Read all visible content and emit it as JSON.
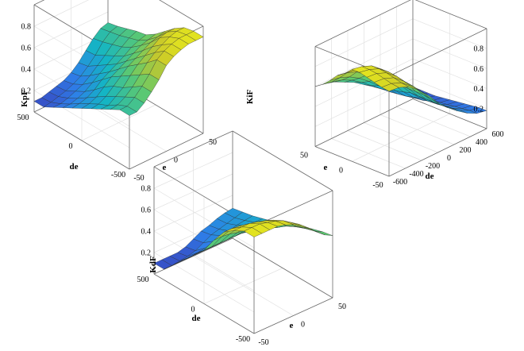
{
  "chart_data": [
    {
      "type": "surface",
      "zlabel": "KpF",
      "xlabel": "e",
      "ylabel": "de",
      "xlim": [
        -50,
        50
      ],
      "ylim": [
        -500,
        500
      ],
      "zlim": [
        0,
        1
      ],
      "x_ticks": [
        "-50",
        "0",
        "50"
      ],
      "y_ticks": [
        "-500",
        "0",
        "500"
      ],
      "z_ticks": [
        "0.2",
        "0.4",
        "0.6",
        "0.8"
      ],
      "grid": true,
      "colormap": [
        "#3e26a8",
        "#2e7fe9",
        "#14b5c4",
        "#60c96d",
        "#c8c82a",
        "#f9fb15"
      ],
      "x": [
        -50,
        -40,
        -30,
        -20,
        -10,
        0,
        10,
        20,
        30,
        40,
        50
      ],
      "y": [
        -500,
        -400,
        -300,
        -200,
        -100,
        0,
        100,
        200,
        300,
        400,
        500
      ],
      "z": [
        [
          0.5,
          0.5,
          0.55,
          0.62,
          0.7,
          0.8,
          0.85,
          0.88,
          0.9,
          0.9,
          0.9
        ],
        [
          0.5,
          0.5,
          0.55,
          0.62,
          0.7,
          0.8,
          0.85,
          0.88,
          0.9,
          0.9,
          0.9
        ],
        [
          0.45,
          0.46,
          0.5,
          0.56,
          0.64,
          0.72,
          0.78,
          0.82,
          0.86,
          0.88,
          0.88
        ],
        [
          0.4,
          0.4,
          0.45,
          0.5,
          0.58,
          0.65,
          0.7,
          0.75,
          0.8,
          0.82,
          0.82
        ],
        [
          0.35,
          0.36,
          0.4,
          0.46,
          0.52,
          0.58,
          0.62,
          0.66,
          0.7,
          0.72,
          0.74
        ],
        [
          0.3,
          0.31,
          0.34,
          0.4,
          0.46,
          0.5,
          0.54,
          0.58,
          0.62,
          0.64,
          0.66
        ],
        [
          0.25,
          0.26,
          0.28,
          0.32,
          0.38,
          0.42,
          0.46,
          0.5,
          0.55,
          0.58,
          0.6
        ],
        [
          0.2,
          0.2,
          0.22,
          0.25,
          0.3,
          0.35,
          0.4,
          0.45,
          0.5,
          0.55,
          0.58
        ],
        [
          0.15,
          0.15,
          0.17,
          0.2,
          0.23,
          0.28,
          0.34,
          0.4,
          0.47,
          0.52,
          0.55
        ],
        [
          0.1,
          0.11,
          0.13,
          0.15,
          0.18,
          0.22,
          0.28,
          0.35,
          0.44,
          0.5,
          0.52
        ],
        [
          0.1,
          0.1,
          0.12,
          0.14,
          0.16,
          0.2,
          0.26,
          0.34,
          0.42,
          0.48,
          0.5
        ]
      ]
    },
    {
      "type": "surface",
      "zlabel": "KiF",
      "xlabel": "e",
      "ylabel": "de",
      "xlim": [
        -50,
        50
      ],
      "ylim": [
        -600,
        600
      ],
      "zlim": [
        0,
        1
      ],
      "x_ticks": [
        "-50",
        "0",
        "50"
      ],
      "y_ticks": [
        "-600",
        "-400",
        "-200",
        "0",
        "200",
        "400",
        "600"
      ],
      "z_ticks": [
        "0.2",
        "0.4",
        "0.6",
        "0.8"
      ],
      "grid": true,
      "colormap": [
        "#3e26a8",
        "#2e7fe9",
        "#14b5c4",
        "#60c96d",
        "#c8c82a",
        "#f9fb15"
      ],
      "x": [
        -50,
        -40,
        -30,
        -20,
        -10,
        0,
        10,
        20,
        30,
        40,
        50
      ],
      "y": [
        -600,
        -480,
        -360,
        -240,
        -120,
        0,
        120,
        240,
        360,
        480,
        600
      ],
      "z": [
        [
          0.85,
          0.86,
          0.88,
          0.9,
          0.92,
          0.92,
          0.85,
          0.8,
          0.72,
          0.65,
          0.6
        ],
        [
          0.84,
          0.85,
          0.87,
          0.89,
          0.9,
          0.9,
          0.84,
          0.78,
          0.7,
          0.63,
          0.58
        ],
        [
          0.8,
          0.81,
          0.83,
          0.85,
          0.86,
          0.86,
          0.8,
          0.74,
          0.66,
          0.6,
          0.55
        ],
        [
          0.72,
          0.73,
          0.75,
          0.77,
          0.78,
          0.78,
          0.72,
          0.66,
          0.6,
          0.55,
          0.5
        ],
        [
          0.62,
          0.63,
          0.65,
          0.66,
          0.66,
          0.66,
          0.62,
          0.58,
          0.52,
          0.48,
          0.45
        ],
        [
          0.5,
          0.51,
          0.52,
          0.52,
          0.52,
          0.52,
          0.5,
          0.47,
          0.43,
          0.4,
          0.38
        ],
        [
          0.4,
          0.4,
          0.4,
          0.4,
          0.4,
          0.4,
          0.38,
          0.36,
          0.34,
          0.32,
          0.31
        ],
        [
          0.32,
          0.32,
          0.32,
          0.31,
          0.3,
          0.3,
          0.28,
          0.26,
          0.25,
          0.24,
          0.24
        ],
        [
          0.25,
          0.25,
          0.24,
          0.23,
          0.22,
          0.22,
          0.2,
          0.19,
          0.18,
          0.18,
          0.18
        ],
        [
          0.2,
          0.2,
          0.19,
          0.18,
          0.17,
          0.16,
          0.15,
          0.14,
          0.14,
          0.14,
          0.14
        ],
        [
          0.18,
          0.18,
          0.17,
          0.16,
          0.15,
          0.14,
          0.13,
          0.12,
          0.12,
          0.12,
          0.12
        ]
      ]
    },
    {
      "type": "surface",
      "zlabel": "KdF",
      "xlabel": "e",
      "ylabel": "de",
      "xlim": [
        -50,
        50
      ],
      "ylim": [
        -500,
        500
      ],
      "zlim": [
        0,
        1
      ],
      "x_ticks": [
        "-50",
        "0",
        "50"
      ],
      "y_ticks": [
        "-500",
        "0",
        "500"
      ],
      "z_ticks": [
        "0.2",
        "0.4",
        "0.6",
        "0.8"
      ],
      "grid": true,
      "colormap": [
        "#3e26a8",
        "#2e7fe9",
        "#14b5c4",
        "#60c96d",
        "#c8c82a",
        "#f9fb15"
      ],
      "x": [
        -50,
        -40,
        -30,
        -20,
        -10,
        0,
        10,
        20,
        30,
        40,
        50
      ],
      "y": [
        -500,
        -400,
        -300,
        -200,
        -100,
        0,
        100,
        200,
        300,
        400,
        500
      ],
      "z": [
        [
          0.9,
          0.9,
          0.9,
          0.9,
          0.88,
          0.85,
          0.8,
          0.75,
          0.68,
          0.62,
          0.58
        ],
        [
          0.9,
          0.9,
          0.9,
          0.88,
          0.86,
          0.83,
          0.78,
          0.73,
          0.66,
          0.6,
          0.56
        ],
        [
          0.85,
          0.85,
          0.85,
          0.83,
          0.81,
          0.78,
          0.73,
          0.68,
          0.62,
          0.57,
          0.53
        ],
        [
          0.78,
          0.78,
          0.77,
          0.75,
          0.73,
          0.7,
          0.66,
          0.62,
          0.57,
          0.53,
          0.5
        ],
        [
          0.65,
          0.65,
          0.64,
          0.62,
          0.61,
          0.6,
          0.57,
          0.54,
          0.5,
          0.48,
          0.46
        ],
        [
          0.5,
          0.5,
          0.5,
          0.5,
          0.5,
          0.5,
          0.48,
          0.46,
          0.44,
          0.42,
          0.42
        ],
        [
          0.4,
          0.4,
          0.4,
          0.4,
          0.4,
          0.4,
          0.4,
          0.4,
          0.4,
          0.38,
          0.38
        ],
        [
          0.3,
          0.3,
          0.3,
          0.3,
          0.3,
          0.32,
          0.33,
          0.34,
          0.35,
          0.35,
          0.35
        ],
        [
          0.2,
          0.2,
          0.2,
          0.21,
          0.22,
          0.25,
          0.27,
          0.28,
          0.3,
          0.31,
          0.32
        ],
        [
          0.1,
          0.1,
          0.11,
          0.12,
          0.14,
          0.18,
          0.22,
          0.24,
          0.26,
          0.28,
          0.3
        ],
        [
          0.1,
          0.1,
          0.1,
          0.1,
          0.12,
          0.16,
          0.2,
          0.22,
          0.25,
          0.27,
          0.28
        ]
      ]
    }
  ]
}
